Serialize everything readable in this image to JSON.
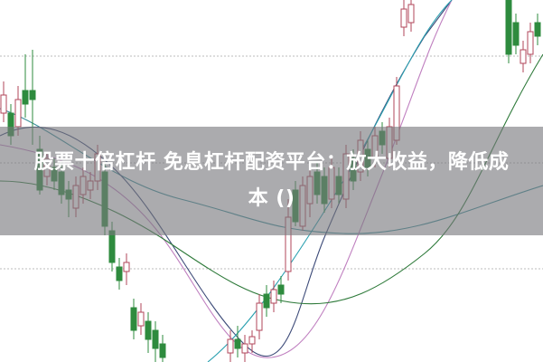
{
  "title_line1": "股票十倍杠杆 免息杠杆配资平台：放大收益，降低成",
  "title_line2": "本 ()",
  "colors": {
    "up": "#b0455a",
    "down": "#2e8b3e",
    "banner": "#7d7d82"
  }
}
